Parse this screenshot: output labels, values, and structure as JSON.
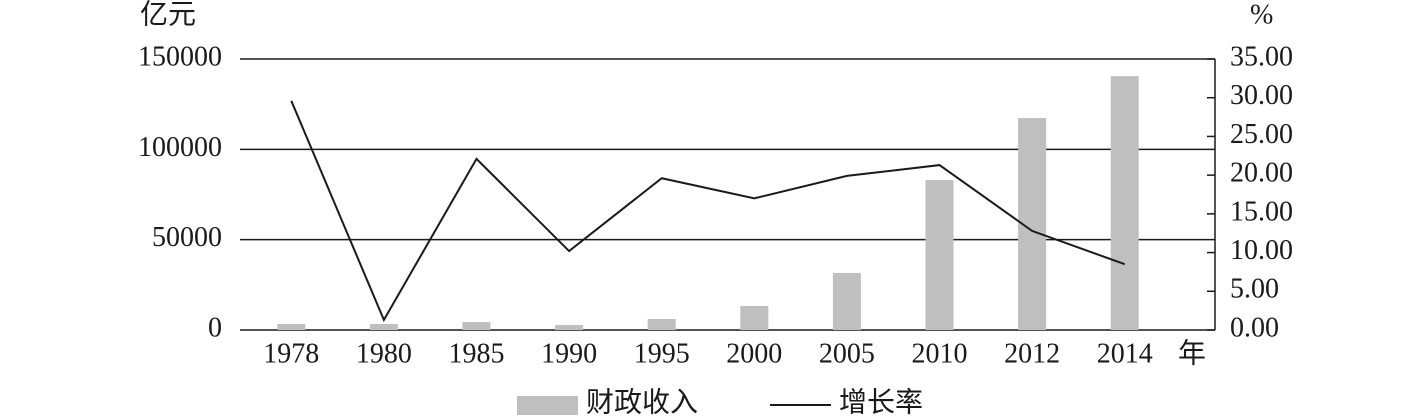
{
  "chart_data": {
    "type": "bar-line",
    "y_unit": "亿元",
    "y2_unit": "%",
    "x_unit": "年",
    "categories": [
      "1978",
      "1980",
      "1985",
      "1990",
      "1995",
      "2000",
      "2005",
      "2010",
      "2012",
      "2014"
    ],
    "series": [
      {
        "name": "财政收入",
        "type": "bar",
        "color": "#bfbfbf",
        "values": [
          3300,
          3300,
          4400,
          2800,
          6100,
          13300,
          31600,
          83000,
          117300,
          140500
        ]
      },
      {
        "name": "增长率",
        "type": "line",
        "axis": "y2",
        "color": "#1a1a1a",
        "values": [
          29.6,
          1.3,
          22.1,
          10.2,
          19.6,
          17.0,
          19.9,
          21.3,
          12.8,
          8.5
        ]
      }
    ],
    "ylim": [
      0,
      150000
    ],
    "yticks": [
      0,
      50000,
      100000,
      150000
    ],
    "y2lim": [
      0,
      35
    ],
    "y2ticks": [
      {
        "value": 0,
        "label": "0.00"
      },
      {
        "value": 5,
        "label": "5.00"
      },
      {
        "value": 10,
        "label": "10.00"
      },
      {
        "value": 15,
        "label": "15.00"
      },
      {
        "value": 20,
        "label": "20.00"
      },
      {
        "value": 25,
        "label": "25.00"
      },
      {
        "value": 30,
        "label": "30.00"
      },
      {
        "value": 35,
        "label": "35.00"
      }
    ],
    "grid": true
  }
}
